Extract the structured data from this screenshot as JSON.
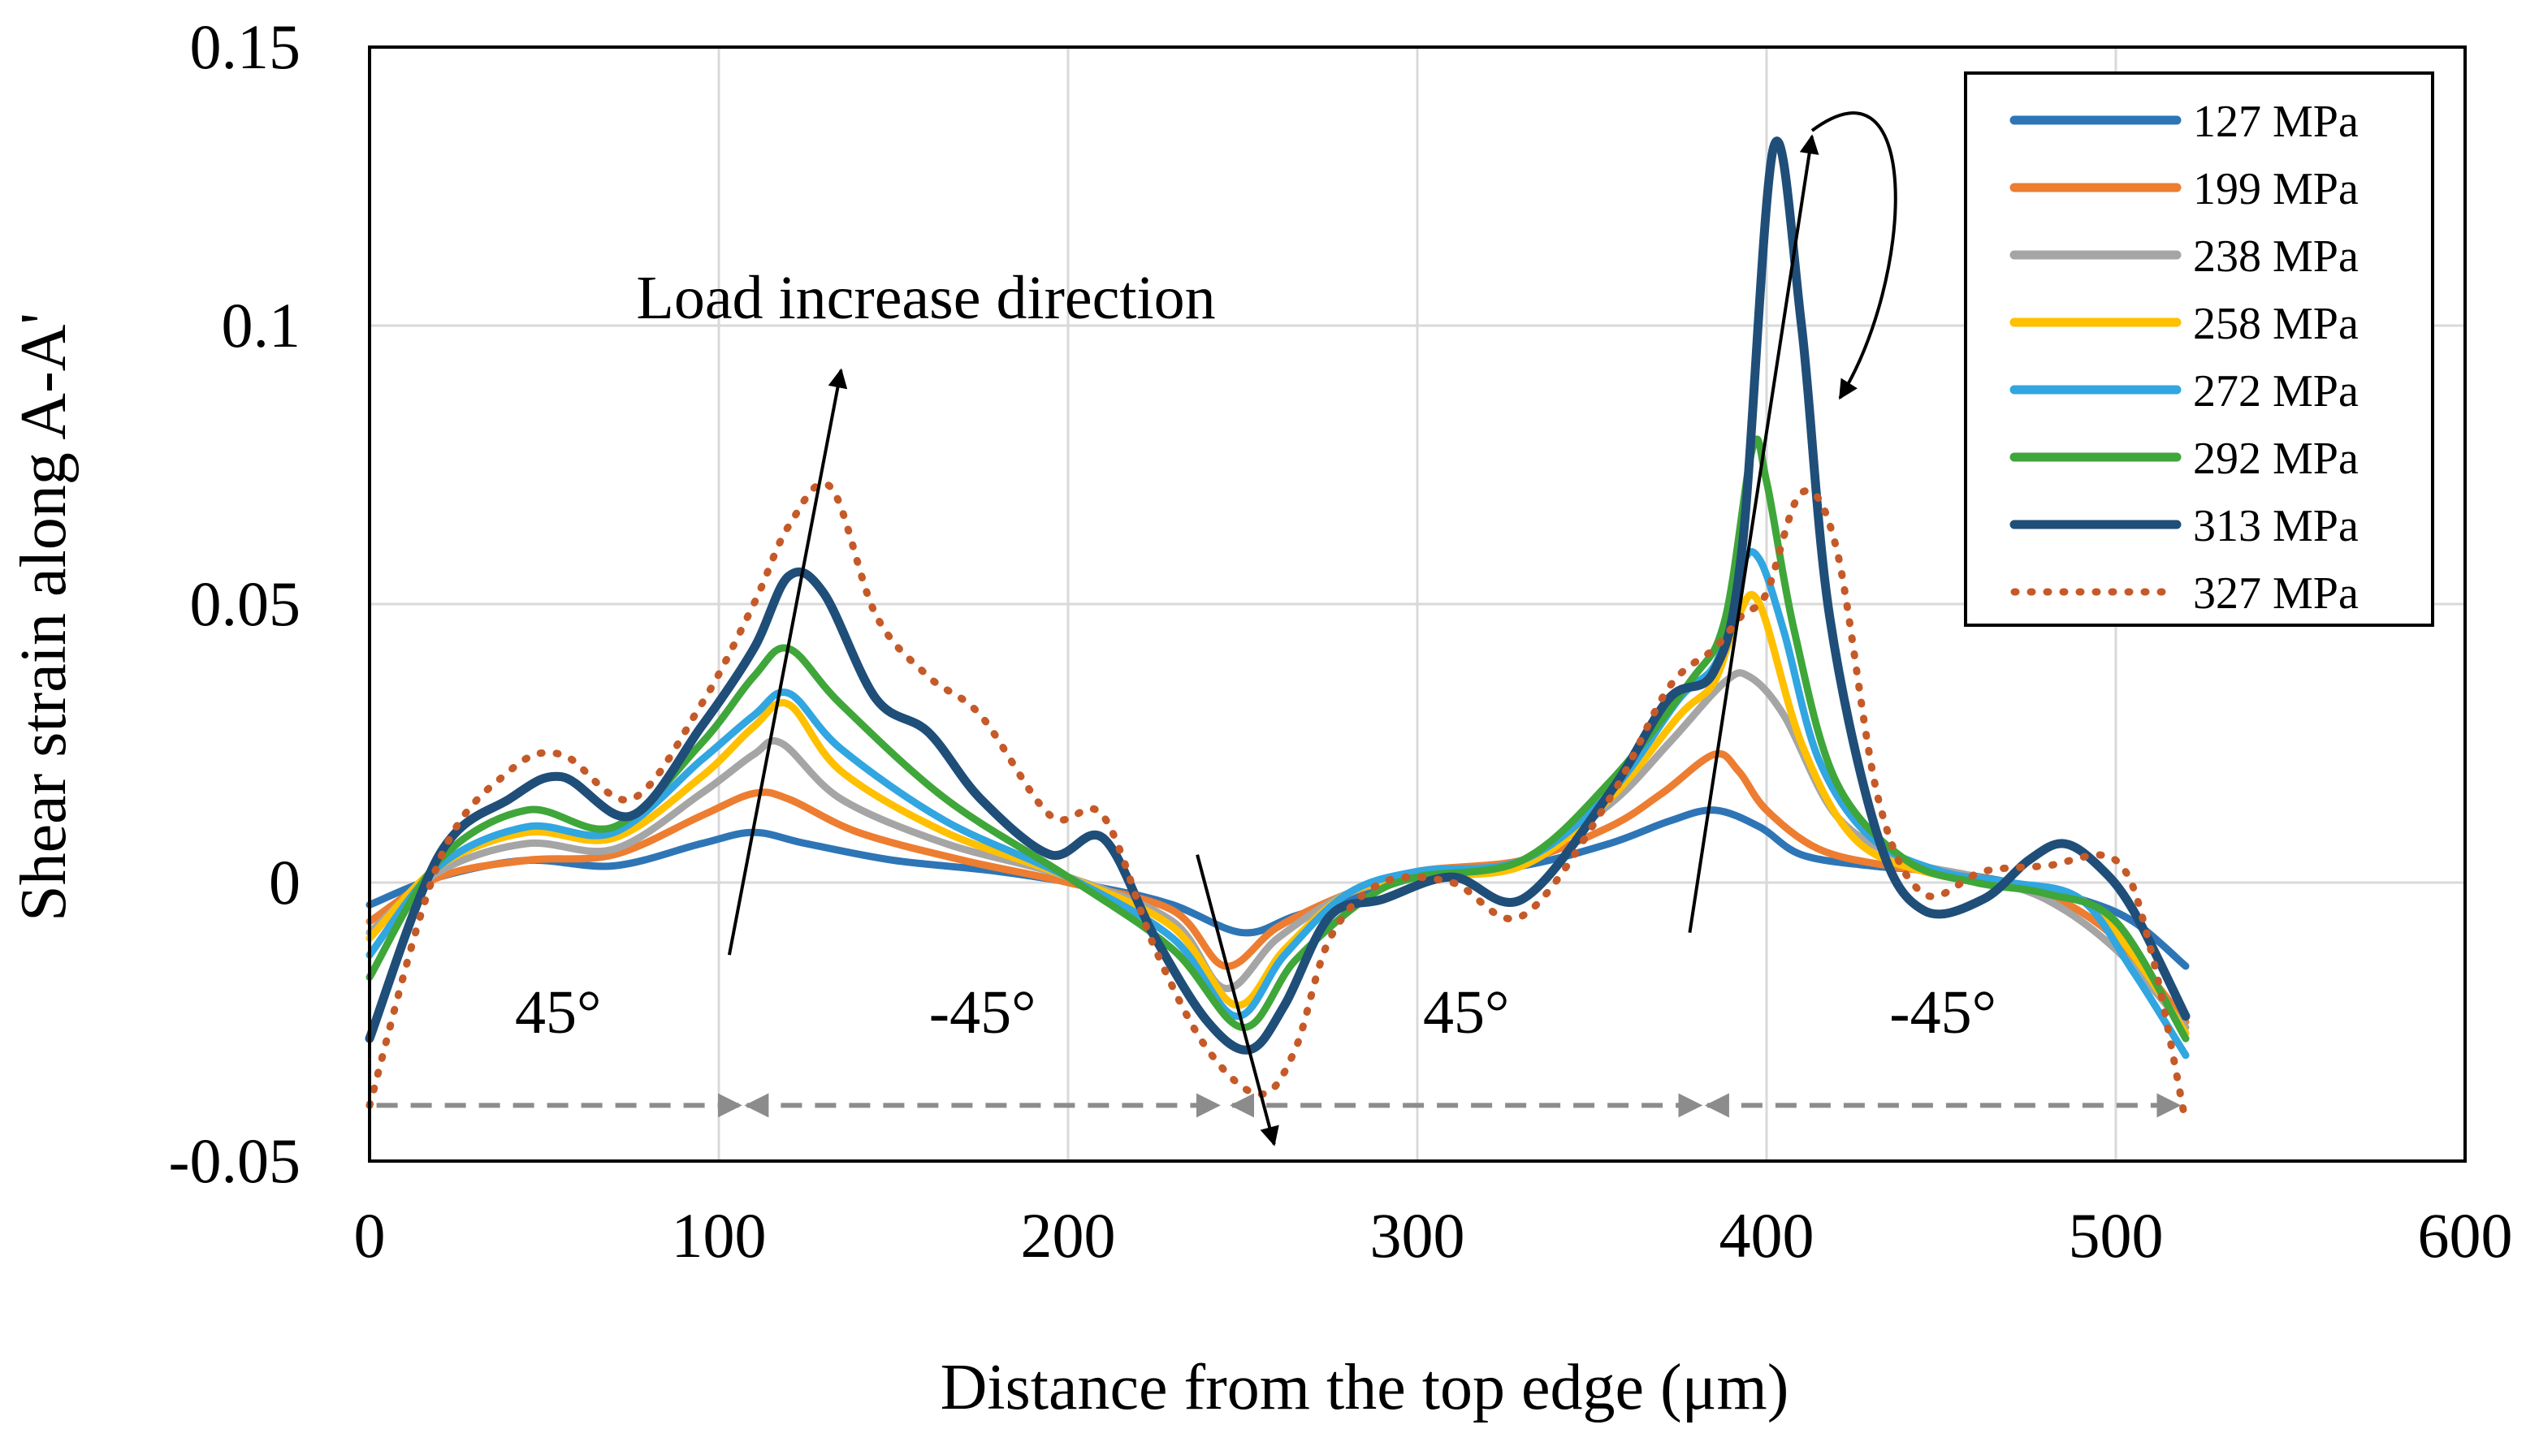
{
  "chart_data": {
    "type": "line",
    "xlabel": "Distance  from  the  top  edge  (μm)",
    "ylabel": "Shear  strain  along  A-A'",
    "xlim": [
      0,
      600
    ],
    "ylim": [
      -0.05,
      0.15
    ],
    "x_ticks": [
      0,
      100,
      200,
      300,
      400,
      500,
      600
    ],
    "y_ticks": [
      -0.05,
      0,
      0.05,
      0.1,
      0.15
    ],
    "x_tick_labels": [
      "0",
      "100",
      "200",
      "300",
      "400",
      "500",
      "600"
    ],
    "y_tick_labels": [
      "-0.05",
      "0",
      "0.05",
      "0.1",
      "0.15"
    ],
    "grid": true,
    "legend_position": "top-right",
    "series": [
      {
        "name": "127 MPa",
        "color": "#2E75B6",
        "style": "solid",
        "x": [
          0,
          20,
          45,
          70,
          95,
          110,
          125,
          150,
          180,
          210,
          230,
          250,
          265,
          285,
          300,
          330,
          355,
          372,
          385,
          398,
          410,
          430,
          450,
          470,
          490,
          505,
          520
        ],
        "y": [
          -0.004,
          0.001,
          0.004,
          0.003,
          0.007,
          0.009,
          0.007,
          0.004,
          0.002,
          -0.001,
          -0.004,
          -0.009,
          -0.006,
          -0.002,
          0.001,
          0.003,
          0.007,
          0.011,
          0.013,
          0.01,
          0.005,
          0.003,
          0.002,
          0.0,
          -0.003,
          -0.007,
          -0.015
        ]
      },
      {
        "name": "199 MPa",
        "color": "#ED7D31",
        "style": "solid",
        "x": [
          0,
          20,
          45,
          70,
          95,
          110,
          120,
          140,
          170,
          200,
          230,
          245,
          260,
          280,
          300,
          330,
          355,
          370,
          385,
          392,
          400,
          415,
          435,
          460,
          480,
          500,
          520
        ],
        "y": [
          -0.007,
          0.001,
          0.004,
          0.005,
          0.012,
          0.016,
          0.015,
          0.009,
          0.004,
          0.0,
          -0.005,
          -0.015,
          -0.008,
          -0.002,
          0.002,
          0.004,
          0.01,
          0.016,
          0.023,
          0.02,
          0.013,
          0.006,
          0.003,
          0.001,
          -0.002,
          -0.01,
          -0.025
        ]
      },
      {
        "name": "238 MPa",
        "color": "#A5A5A5",
        "style": "solid",
        "x": [
          0,
          20,
          45,
          70,
          95,
          110,
          118,
          135,
          165,
          200,
          230,
          245,
          260,
          280,
          300,
          330,
          355,
          372,
          388,
          395,
          405,
          420,
          440,
          460,
          480,
          500,
          520
        ],
        "y": [
          -0.009,
          0.002,
          0.007,
          0.006,
          0.016,
          0.023,
          0.025,
          0.015,
          0.007,
          0.001,
          -0.007,
          -0.019,
          -0.01,
          -0.002,
          0.001,
          0.004,
          0.014,
          0.025,
          0.036,
          0.037,
          0.03,
          0.012,
          0.004,
          0.001,
          -0.003,
          -0.012,
          -0.026
        ]
      },
      {
        "name": "258 MPa",
        "color": "#FFC000",
        "style": "solid",
        "x": [
          0,
          20,
          45,
          70,
          95,
          110,
          120,
          135,
          165,
          200,
          230,
          248,
          262,
          280,
          300,
          330,
          355,
          375,
          385,
          392,
          398,
          410,
          425,
          445,
          470,
          490,
          505,
          520
        ],
        "y": [
          -0.01,
          0.003,
          0.009,
          0.008,
          0.019,
          0.028,
          0.032,
          0.02,
          0.009,
          0.001,
          -0.008,
          -0.022,
          -0.012,
          -0.002,
          0.001,
          0.003,
          0.015,
          0.03,
          0.036,
          0.048,
          0.05,
          0.025,
          0.008,
          0.002,
          0.0,
          -0.003,
          -0.013,
          -0.027
        ]
      },
      {
        "name": "272 MPa",
        "color": "#31A6E0",
        "style": "solid",
        "x": [
          0,
          20,
          45,
          70,
          95,
          110,
          120,
          135,
          165,
          200,
          230,
          248,
          262,
          280,
          300,
          330,
          355,
          375,
          386,
          393,
          398,
          405,
          415,
          430,
          450,
          470,
          490,
          505,
          520
        ],
        "y": [
          -0.013,
          0.003,
          0.01,
          0.009,
          0.022,
          0.03,
          0.034,
          0.024,
          0.011,
          0.001,
          -0.01,
          -0.024,
          -0.013,
          -0.002,
          0.002,
          0.004,
          0.016,
          0.033,
          0.04,
          0.057,
          0.058,
          0.045,
          0.022,
          0.008,
          0.002,
          0.0,
          -0.003,
          -0.016,
          -0.031
        ]
      },
      {
        "name": "292 MPa",
        "color": "#3FA63A",
        "style": "solid",
        "x": [
          0,
          20,
          45,
          70,
          95,
          110,
          120,
          135,
          165,
          200,
          230,
          250,
          265,
          285,
          300,
          330,
          355,
          378,
          388,
          396,
          400,
          408,
          420,
          440,
          460,
          480,
          500,
          520
        ],
        "y": [
          -0.017,
          0.004,
          0.013,
          0.01,
          0.025,
          0.037,
          0.042,
          0.032,
          0.015,
          0.001,
          -0.012,
          -0.026,
          -0.014,
          -0.003,
          0.001,
          0.004,
          0.018,
          0.036,
          0.047,
          0.078,
          0.072,
          0.045,
          0.018,
          0.004,
          0.0,
          -0.002,
          -0.007,
          -0.028
        ]
      },
      {
        "name": "313 MPa",
        "color": "#1F4E79",
        "style": "solid",
        "x": [
          0,
          20,
          40,
          55,
          75,
          95,
          110,
          120,
          130,
          145,
          160,
          175,
          195,
          210,
          225,
          240,
          252,
          262,
          275,
          290,
          310,
          330,
          355,
          372,
          385,
          393,
          402,
          410,
          418,
          432,
          445,
          462,
          475,
          485,
          495,
          505,
          520
        ],
        "y": [
          -0.028,
          0.005,
          0.015,
          0.019,
          0.012,
          0.028,
          0.042,
          0.055,
          0.052,
          0.033,
          0.027,
          0.015,
          0.005,
          0.008,
          -0.01,
          -0.025,
          -0.03,
          -0.022,
          -0.006,
          -0.003,
          0.001,
          -0.003,
          0.016,
          0.033,
          0.038,
          0.06,
          0.132,
          0.1,
          0.048,
          0.008,
          -0.005,
          -0.003,
          0.004,
          0.007,
          0.003,
          -0.005,
          -0.024
        ]
      },
      {
        "name": "327 MPa",
        "color": "#C55A28",
        "style": "dotted",
        "x": [
          0,
          20,
          40,
          55,
          75,
          95,
          110,
          120,
          132,
          145,
          160,
          175,
          195,
          210,
          225,
          240,
          255,
          265,
          275,
          290,
          310,
          330,
          355,
          372,
          385,
          393,
          400,
          410,
          420,
          432,
          445,
          462,
          480,
          500,
          510,
          520
        ],
        "y": [
          -0.04,
          0.004,
          0.02,
          0.023,
          0.015,
          0.032,
          0.05,
          0.064,
          0.071,
          0.048,
          0.037,
          0.03,
          0.012,
          0.012,
          -0.012,
          -0.03,
          -0.038,
          -0.03,
          -0.01,
          0.0,
          0.0,
          -0.006,
          0.015,
          0.035,
          0.042,
          0.048,
          0.052,
          0.07,
          0.06,
          0.015,
          -0.002,
          0.002,
          0.003,
          0.004,
          -0.012,
          -0.043
        ]
      }
    ],
    "annotations": {
      "load_text": "Load  increase  direction",
      "angle_labels": [
        "45°",
        "-45°",
        "45°",
        "-45°"
      ]
    }
  }
}
